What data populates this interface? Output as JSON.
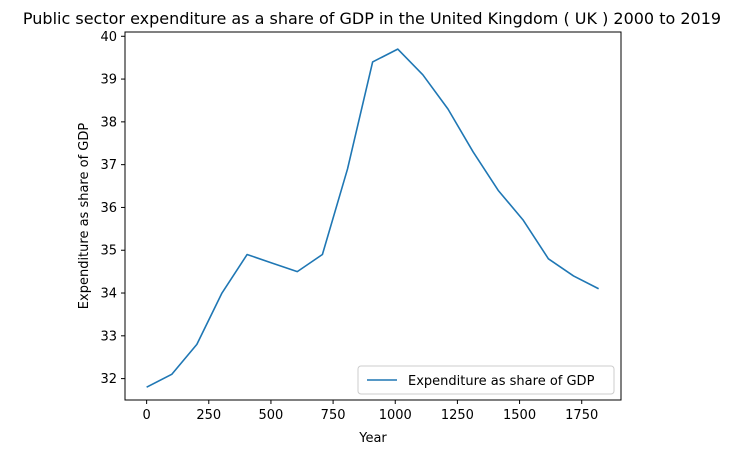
{
  "chart_data": {
    "type": "line",
    "title": "Public sector expenditure as a share of GDP in the United Kingdom ( UK ) 2000 to 2019",
    "xlabel": "Year",
    "ylabel": "Expenditure as share of GDP",
    "xlim": [
      -87,
      1908
    ],
    "ylim": [
      31.5,
      40.1
    ],
    "xticks": [
      0,
      250,
      500,
      750,
      1000,
      1250,
      1500,
      1750
    ],
    "yticks": [
      32,
      33,
      34,
      35,
      36,
      37,
      38,
      39,
      40
    ],
    "grid": false,
    "legend": {
      "placement": "lower-right"
    },
    "series": [
      {
        "name": "Expenditure as share of GDP",
        "color": "#1f77b4",
        "x": [
          0,
          101,
          202,
          303,
          404,
          505,
          606,
          707,
          808,
          909,
          1010,
          1111,
          1212,
          1313,
          1414,
          1515,
          1616,
          1717,
          1818
        ],
        "y": [
          31.8,
          32.1,
          32.8,
          34.0,
          34.9,
          34.7,
          34.5,
          34.9,
          36.9,
          39.4,
          39.7,
          39.1,
          38.3,
          37.3,
          36.4,
          35.7,
          34.8,
          34.4,
          34.1
        ]
      }
    ]
  }
}
